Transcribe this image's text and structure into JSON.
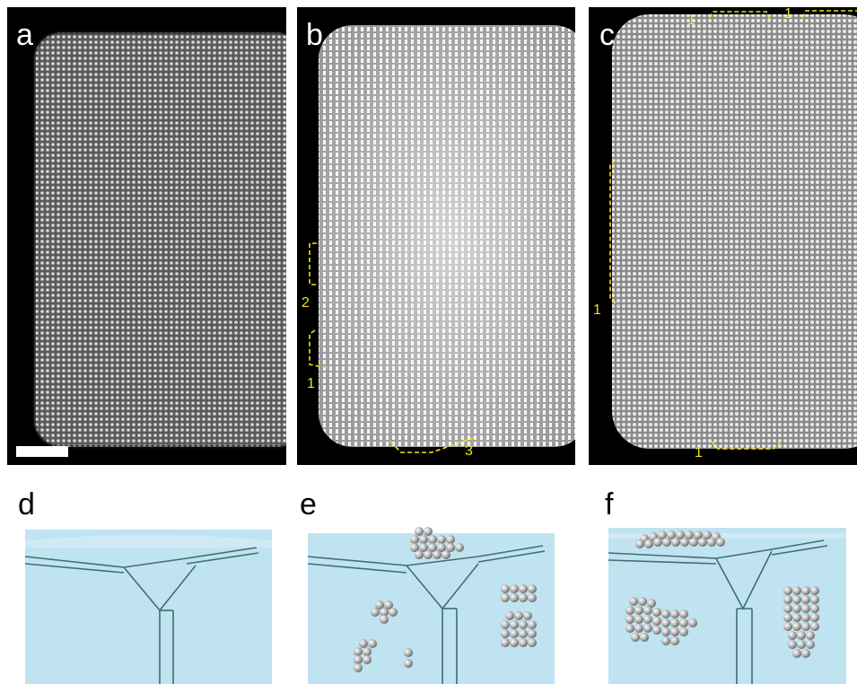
{
  "figure": {
    "panels_top": [
      {
        "id": "a",
        "label": "a"
      },
      {
        "id": "b",
        "label": "b",
        "annotations": [
          "2",
          "1",
          "3"
        ]
      },
      {
        "id": "c",
        "label": "c",
        "annotations": [
          "1",
          "1",
          "1",
          "1"
        ]
      }
    ],
    "panels_bottom": [
      {
        "id": "d",
        "label": "d"
      },
      {
        "id": "e",
        "label": "e"
      },
      {
        "id": "f",
        "label": "f"
      }
    ],
    "colors": {
      "background": "#ffffff",
      "micrograph_bg": "#000000",
      "annotation": "#f2e11a",
      "scheme_fill": "#bfe3f0",
      "scheme_line": "#3f6f6f",
      "atom": "#b8b8b8"
    }
  }
}
